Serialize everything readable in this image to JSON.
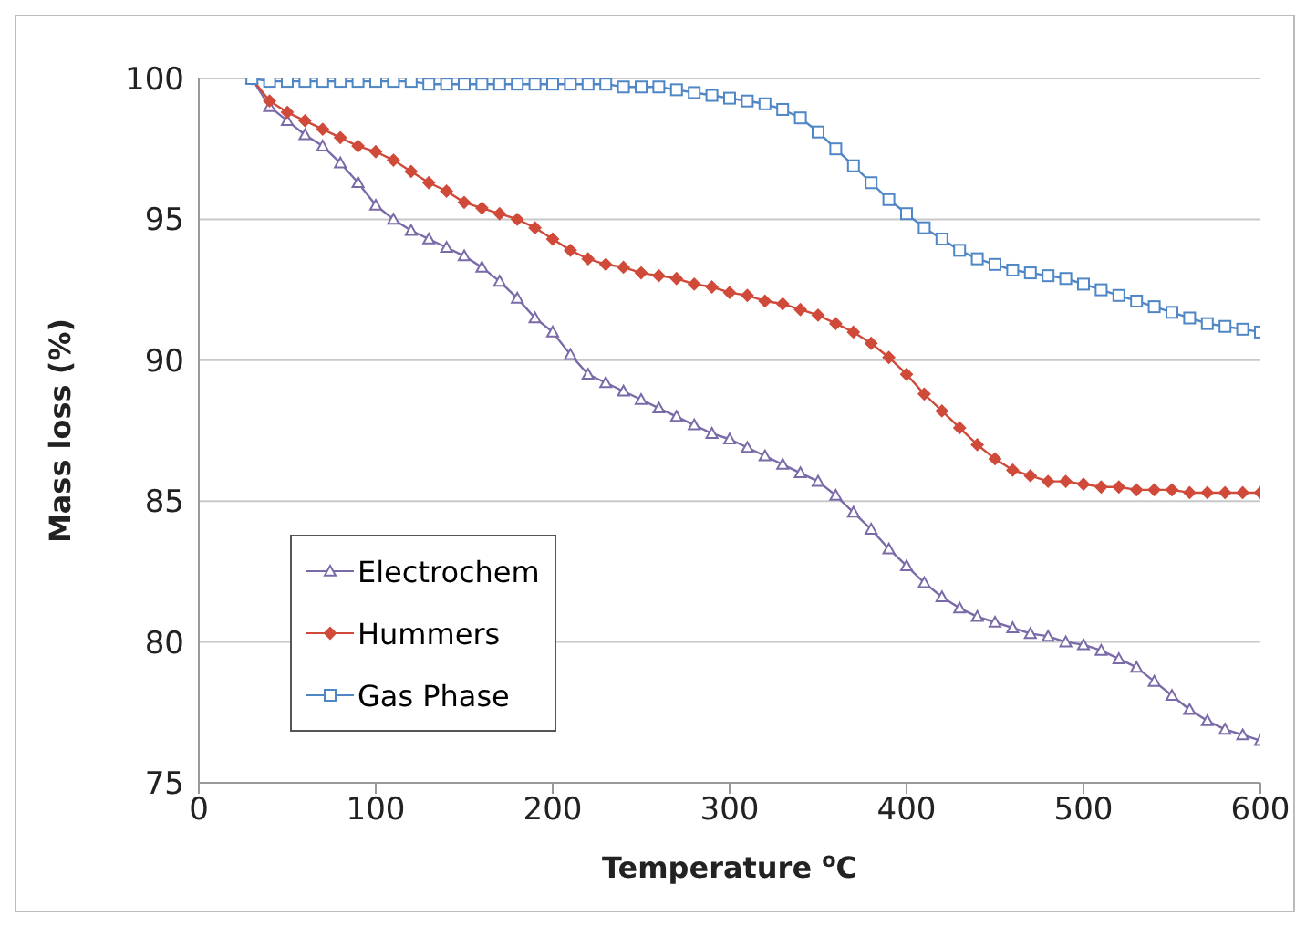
{
  "chart_data": {
    "type": "line",
    "xlabel": "Temperature $^{o}$C",
    "ylabel": "Mass loss (%)",
    "x": [
      30,
      40,
      50,
      60,
      70,
      80,
      90,
      100,
      110,
      120,
      130,
      140,
      150,
      160,
      170,
      180,
      190,
      200,
      210,
      220,
      230,
      240,
      250,
      260,
      270,
      280,
      290,
      300,
      310,
      320,
      330,
      340,
      350,
      360,
      370,
      380,
      390,
      400,
      410,
      420,
      430,
      440,
      450,
      460,
      470,
      480,
      490,
      500,
      510,
      520,
      530,
      540,
      550,
      560,
      570,
      580,
      590,
      600
    ],
    "series": [
      {
        "name": "Electrochem",
        "color": "#7b6aa8",
        "marker": "triangle",
        "values": [
          100,
          99,
          98.5,
          98,
          97.6,
          97,
          96.3,
          95.5,
          95,
          94.6,
          94.3,
          94,
          93.7,
          93.3,
          92.8,
          92.2,
          91.5,
          91,
          90.2,
          89.5,
          89.2,
          88.9,
          88.6,
          88.3,
          88,
          87.7,
          87.4,
          87.2,
          86.9,
          86.6,
          86.3,
          86,
          85.7,
          85.2,
          84.6,
          84,
          83.3,
          82.7,
          82.1,
          81.6,
          81.2,
          80.9,
          80.7,
          80.5,
          80.3,
          80.2,
          80,
          79.9,
          79.7,
          79.4,
          79.1,
          78.6,
          78.1,
          77.6,
          77.2,
          76.9,
          76.7,
          76.5
        ]
      },
      {
        "name": "Hummers",
        "color": "#d04a3a",
        "marker": "diamond",
        "values": [
          100,
          99.2,
          98.8,
          98.5,
          98.2,
          97.9,
          97.6,
          97.4,
          97.1,
          96.7,
          96.3,
          96,
          95.6,
          95.4,
          95.2,
          95,
          94.7,
          94.3,
          93.9,
          93.6,
          93.4,
          93.3,
          93.1,
          93,
          92.9,
          92.7,
          92.6,
          92.4,
          92.3,
          92.1,
          92,
          91.8,
          91.6,
          91.3,
          91,
          90.6,
          90.1,
          89.5,
          88.8,
          88.2,
          87.6,
          87,
          86.5,
          86.1,
          85.9,
          85.7,
          85.7,
          85.6,
          85.5,
          85.5,
          85.4,
          85.4,
          85.4,
          85.3,
          85.3,
          85.3,
          85.3,
          85.3
        ]
      },
      {
        "name": "Gas Phase",
        "color": "#4f86c6",
        "marker": "square",
        "values": [
          100,
          99.9,
          99.9,
          99.9,
          99.9,
          99.9,
          99.9,
          99.9,
          99.9,
          99.9,
          99.8,
          99.8,
          99.8,
          99.8,
          99.8,
          99.8,
          99.8,
          99.8,
          99.8,
          99.8,
          99.8,
          99.7,
          99.7,
          99.7,
          99.6,
          99.5,
          99.4,
          99.3,
          99.2,
          99.1,
          98.9,
          98.6,
          98.1,
          97.5,
          96.9,
          96.3,
          95.7,
          95.2,
          94.7,
          94.3,
          93.9,
          93.6,
          93.4,
          93.2,
          93.1,
          93,
          92.9,
          92.7,
          92.5,
          92.3,
          92.1,
          91.9,
          91.7,
          91.5,
          91.3,
          91.2,
          91.1,
          91
        ]
      }
    ],
    "xlim": [
      0,
      600
    ],
    "xticks": [
      0,
      100,
      200,
      300,
      400,
      500,
      600
    ],
    "ylim": [
      75,
      100
    ],
    "yticks": [
      75,
      80,
      85,
      90,
      95,
      100
    ],
    "grid": "y",
    "legend": "bottom left",
    "line_style": "solid"
  }
}
